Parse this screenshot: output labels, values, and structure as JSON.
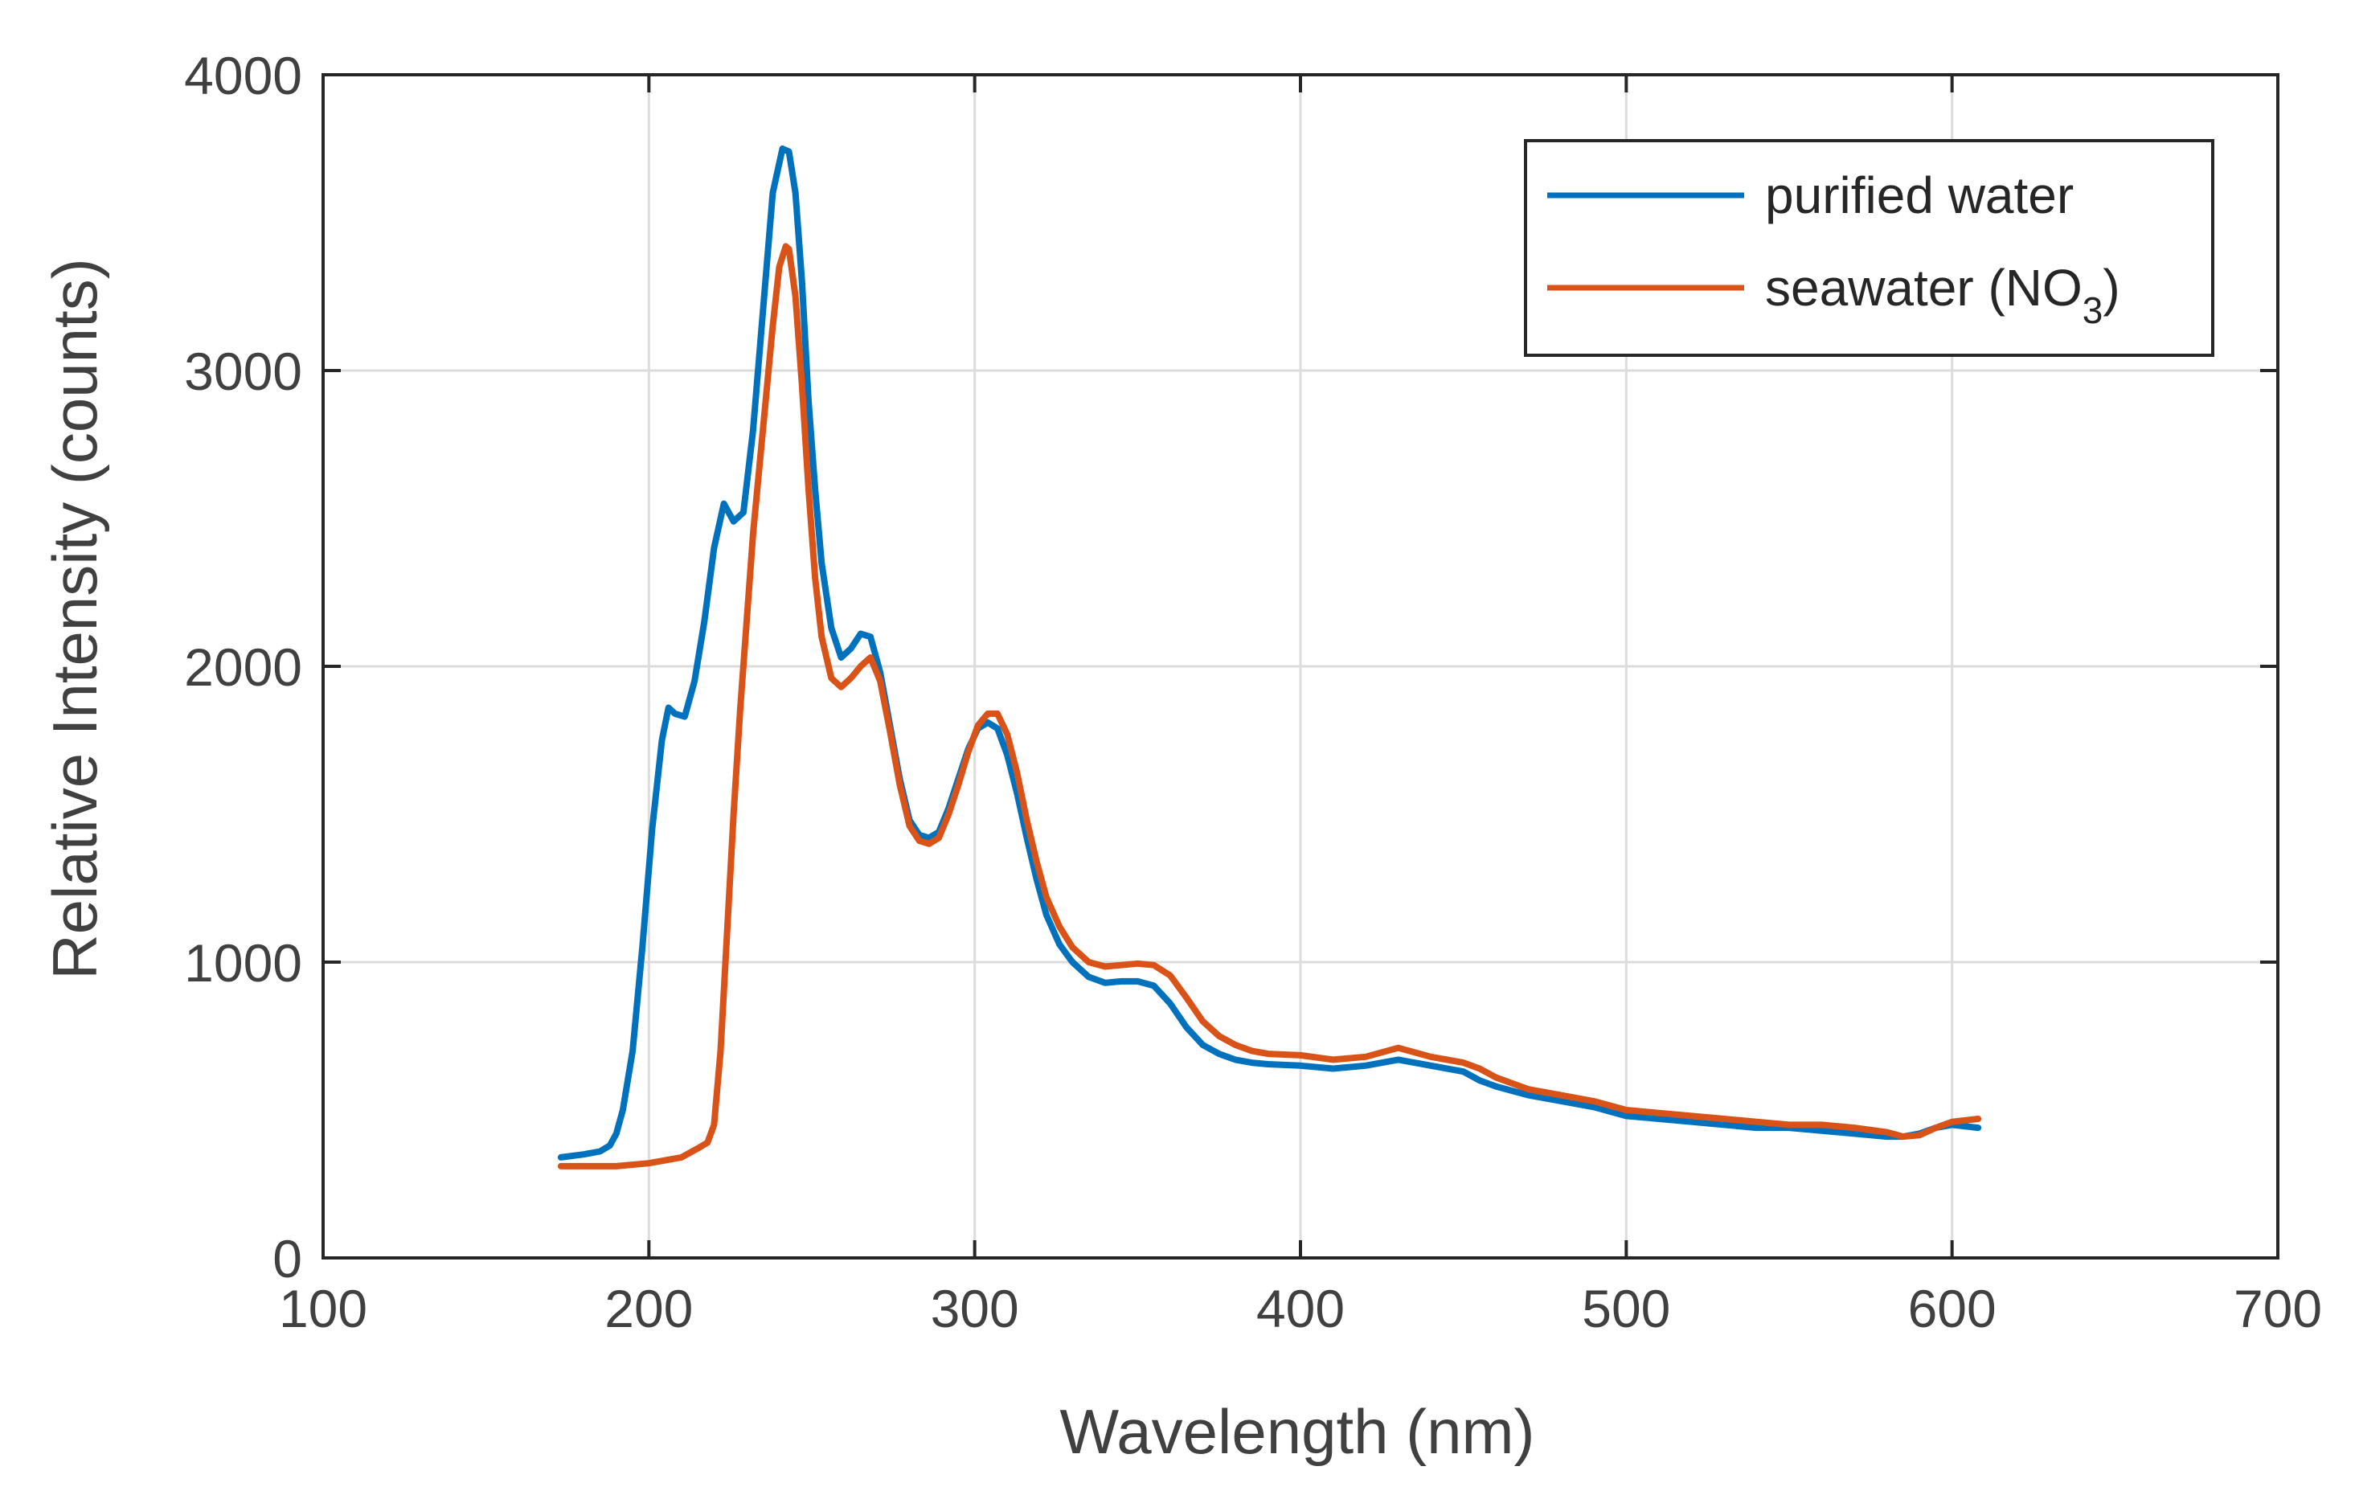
{
  "chart_data": {
    "type": "line",
    "title": "",
    "xlabel": "Wavelength (nm)",
    "ylabel": "Relative Intensity (counts)",
    "xlim": [
      100,
      700
    ],
    "ylim": [
      0,
      4000
    ],
    "xticks": [
      100,
      200,
      300,
      400,
      500,
      600,
      700
    ],
    "yticks": [
      0,
      1000,
      2000,
      3000,
      4000
    ],
    "xtick_labels": [
      "100",
      "200",
      "300",
      "400",
      "500",
      "600",
      "700"
    ],
    "ytick_labels": [
      "0",
      "1000",
      "2000",
      "3000",
      "4000"
    ],
    "grid": true,
    "legend_position": "top-right",
    "series": [
      {
        "name": "purified water",
        "color": "#0072BD",
        "x": [
          173,
          180,
          185,
          188,
          190,
          192,
          195,
          198,
          201,
          204,
          206,
          208,
          211,
          214,
          217,
          220,
          223,
          226,
          229,
          232,
          235,
          238,
          241,
          243,
          245,
          247,
          249,
          251,
          253,
          256,
          259,
          262,
          265,
          268,
          271,
          274,
          277,
          280,
          283,
          286,
          289,
          292,
          295,
          298,
          301,
          304,
          307,
          310,
          313,
          316,
          319,
          322,
          326,
          330,
          335,
          340,
          345,
          350,
          355,
          360,
          365,
          370,
          375,
          380,
          385,
          390,
          400,
          410,
          420,
          430,
          440,
          450,
          455,
          460,
          470,
          480,
          490,
          500,
          510,
          520,
          530,
          540,
          550,
          560,
          570,
          580,
          585,
          590,
          595,
          600,
          608
        ],
        "values": [
          340,
          350,
          360,
          380,
          420,
          500,
          700,
          1050,
          1450,
          1750,
          1860,
          1840,
          1830,
          1950,
          2150,
          2400,
          2550,
          2490,
          2520,
          2800,
          3200,
          3600,
          3750,
          3740,
          3600,
          3300,
          2900,
          2600,
          2350,
          2130,
          2030,
          2060,
          2110,
          2100,
          1980,
          1800,
          1620,
          1480,
          1430,
          1420,
          1440,
          1520,
          1620,
          1720,
          1790,
          1810,
          1790,
          1700,
          1570,
          1420,
          1280,
          1160,
          1060,
          1000,
          950,
          930,
          935,
          935,
          920,
          860,
          780,
          720,
          690,
          670,
          660,
          655,
          650,
          640,
          650,
          670,
          650,
          630,
          600,
          580,
          550,
          530,
          510,
          480,
          470,
          460,
          450,
          440,
          440,
          430,
          420,
          410,
          410,
          420,
          440,
          450,
          440
        ]
      },
      {
        "name": "seawater (NO3)",
        "color": "#D95319",
        "x": [
          173,
          180,
          190,
          200,
          205,
          210,
          215,
          218,
          220,
          222,
          224,
          226,
          228,
          230,
          232,
          235,
          238,
          240,
          242,
          243,
          245,
          247,
          249,
          251,
          253,
          256,
          259,
          262,
          265,
          268,
          271,
          274,
          277,
          280,
          283,
          286,
          289,
          292,
          295,
          298,
          301,
          304,
          307,
          310,
          313,
          316,
          319,
          322,
          326,
          330,
          335,
          340,
          345,
          350,
          355,
          360,
          365,
          370,
          375,
          380,
          385,
          390,
          400,
          410,
          420,
          430,
          440,
          450,
          455,
          460,
          470,
          480,
          490,
          500,
          510,
          520,
          530,
          540,
          550,
          560,
          570,
          580,
          585,
          590,
          595,
          600,
          608
        ],
        "values": [
          310,
          310,
          310,
          320,
          330,
          340,
          370,
          390,
          450,
          700,
          1100,
          1500,
          1850,
          2150,
          2450,
          2800,
          3150,
          3350,
          3420,
          3410,
          3250,
          2950,
          2600,
          2300,
          2100,
          1960,
          1930,
          1960,
          2000,
          2030,
          1950,
          1780,
          1600,
          1460,
          1410,
          1400,
          1420,
          1500,
          1600,
          1710,
          1800,
          1840,
          1840,
          1770,
          1640,
          1480,
          1340,
          1220,
          1120,
          1050,
          1000,
          985,
          990,
          995,
          990,
          955,
          880,
          800,
          750,
          720,
          700,
          690,
          685,
          670,
          680,
          710,
          680,
          660,
          640,
          610,
          570,
          550,
          530,
          500,
          490,
          480,
          470,
          460,
          450,
          450,
          440,
          425,
          410,
          415,
          440,
          460,
          470
        ]
      }
    ],
    "legend": {
      "entries": [
        "purified water",
        "seawater (NO"
      ],
      "subscript": "3",
      "suffix": ")"
    }
  }
}
